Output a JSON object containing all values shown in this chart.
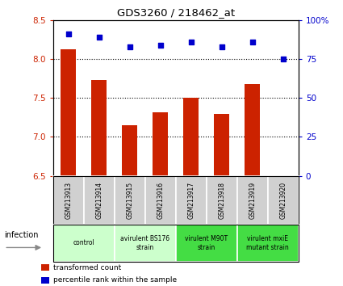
{
  "title": "GDS3260 / 218462_at",
  "samples": [
    "GSM213913",
    "GSM213914",
    "GSM213915",
    "GSM213916",
    "GSM213917",
    "GSM213918",
    "GSM213919",
    "GSM213920"
  ],
  "transformed_count": [
    8.12,
    7.73,
    7.15,
    7.32,
    7.5,
    7.3,
    7.68,
    6.5
  ],
  "percentile_rank": [
    91,
    89,
    83,
    84,
    86,
    83,
    86,
    75
  ],
  "ylim_left": [
    6.5,
    8.5
  ],
  "ylim_right": [
    0,
    100
  ],
  "yticks_left": [
    6.5,
    7.0,
    7.5,
    8.0,
    8.5
  ],
  "yticks_right": [
    0,
    25,
    50,
    75,
    100
  ],
  "bar_color": "#cc2200",
  "dot_color": "#0000cc",
  "background_plot": "#ffffff",
  "group_positions": [
    {
      "start": 0,
      "end": 1,
      "label": "control",
      "color": "#ccffcc"
    },
    {
      "start": 2,
      "end": 3,
      "label": "avirulent BS176\nstrain",
      "color": "#ccffcc"
    },
    {
      "start": 4,
      "end": 5,
      "label": "virulent M90T\nstrain",
      "color": "#44dd44"
    },
    {
      "start": 6,
      "end": 7,
      "label": "virulent mxiE\nmutant strain",
      "color": "#44dd44"
    }
  ],
  "xlabel_infection": "infection",
  "legend_bar_label": "transformed count",
  "legend_dot_label": "percentile rank within the sample",
  "tick_label_color_left": "#cc2200",
  "tick_label_color_right": "#0000cc",
  "sample_box_color": "#d0d0d0",
  "fig_width": 4.25,
  "fig_height": 3.54,
  "dpi": 100
}
